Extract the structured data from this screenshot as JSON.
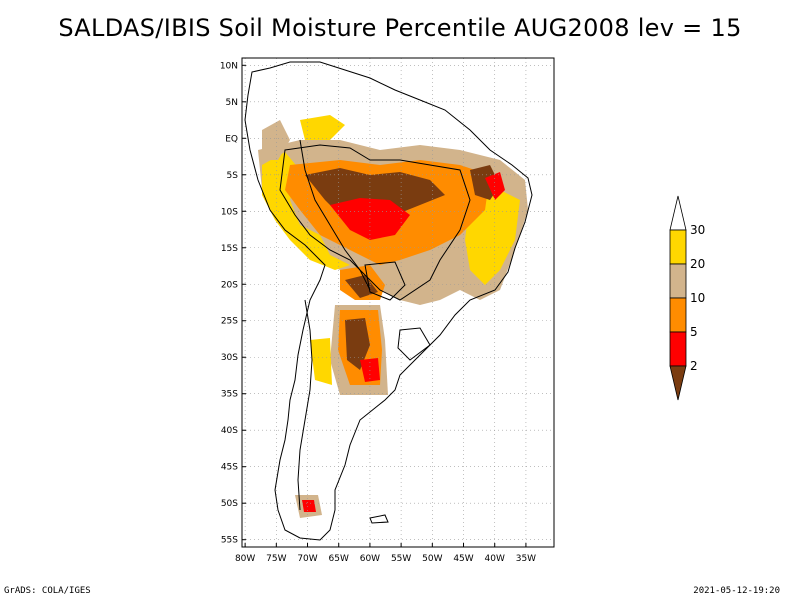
{
  "title": "SALDAS/IBIS Soil Moisture Percentile AUG2008 lev = 15",
  "footer": {
    "left": "GrADS: COLA/IGES",
    "right": "2021-05-12-19:20"
  },
  "map": {
    "region": "South America",
    "lat_ticks": [
      "10N",
      "5N",
      "EQ",
      "5S",
      "10S",
      "15S",
      "20S",
      "25S",
      "30S",
      "35S",
      "40S",
      "45S",
      "50S",
      "55S"
    ],
    "lon_ticks": [
      "80W",
      "75W",
      "70W",
      "65W",
      "60W",
      "55W",
      "50W",
      "45W",
      "40W",
      "35W"
    ]
  },
  "legend": {
    "labels": [
      "2",
      "5",
      "10",
      "20",
      "30"
    ],
    "colors": [
      "#7a3c10",
      "#ff0000",
      "#ff8c00",
      "#d2b48c",
      "#ffd700",
      "#ffffff"
    ]
  }
}
